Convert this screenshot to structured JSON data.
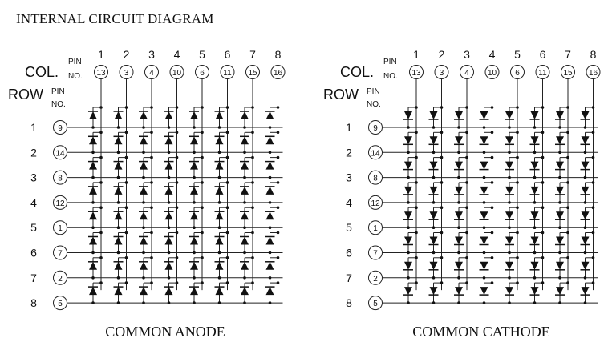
{
  "title": "INTERNAL CIRCUIT DIAGRAM",
  "labels": {
    "col": "COL.",
    "row": "ROW",
    "pin": "PIN",
    "no": "NO."
  },
  "matrices": [
    {
      "caption": "COMMON ANODE",
      "type": "anode",
      "columns": [
        "1",
        "2",
        "3",
        "4",
        "5",
        "6",
        "7",
        "8"
      ],
      "column_pins": [
        "13",
        "3",
        "4",
        "10",
        "6",
        "11",
        "15",
        "16"
      ],
      "rows": [
        "1",
        "2",
        "3",
        "4",
        "5",
        "6",
        "7",
        "8"
      ],
      "row_pins": [
        "9",
        "14",
        "8",
        "12",
        "1",
        "7",
        "2",
        "5"
      ]
    },
    {
      "caption": "COMMON CATHODE",
      "type": "cathode",
      "columns": [
        "1",
        "2",
        "3",
        "4",
        "5",
        "6",
        "7",
        "8"
      ],
      "column_pins": [
        "13",
        "3",
        "4",
        "10",
        "6",
        "11",
        "15",
        "16"
      ],
      "rows": [
        "1",
        "2",
        "3",
        "4",
        "5",
        "6",
        "7",
        "8"
      ],
      "row_pins": [
        "9",
        "14",
        "8",
        "12",
        "1",
        "7",
        "2",
        "5"
      ]
    }
  ]
}
